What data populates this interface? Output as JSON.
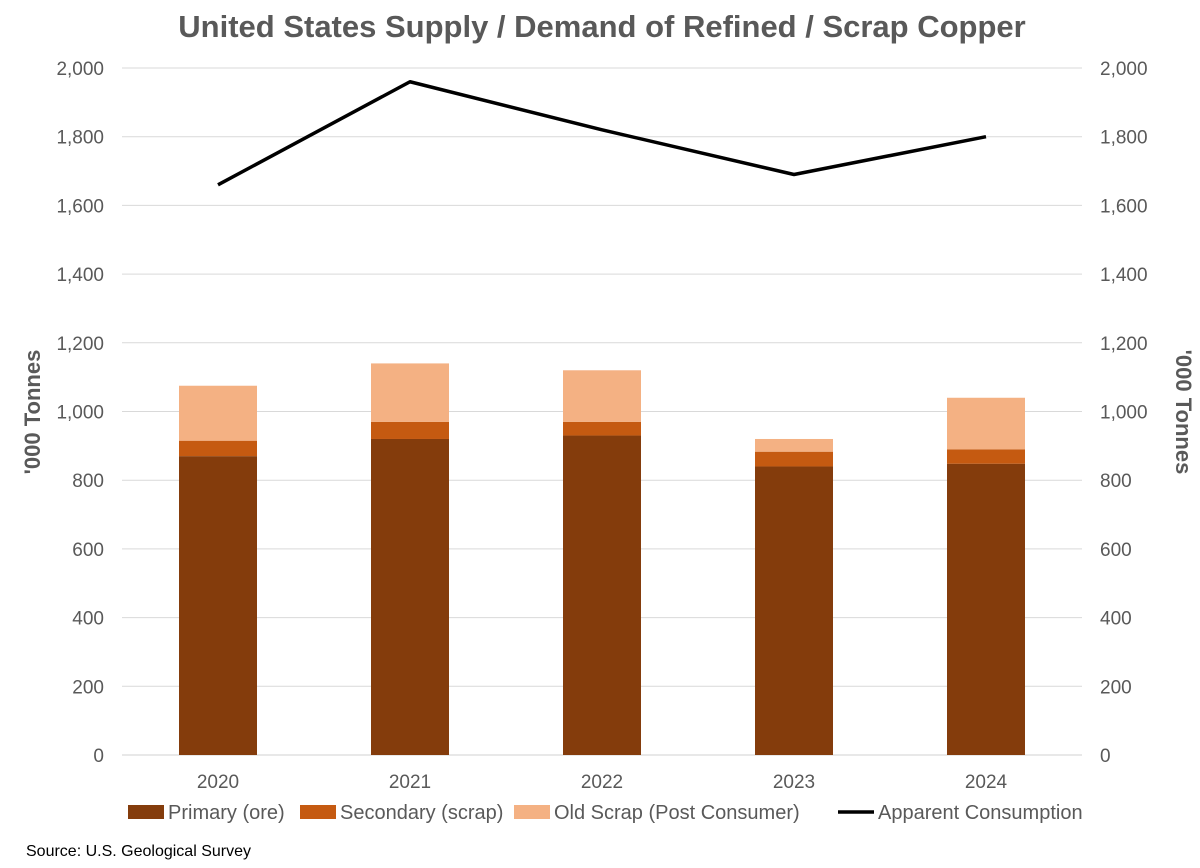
{
  "chart_data": {
    "type": "bar",
    "stacked": true,
    "title": "United States Supply / Demand of Refined / Scrap Copper",
    "categories": [
      "2020",
      "2021",
      "2022",
      "2023",
      "2024"
    ],
    "series": [
      {
        "name": "Primary (ore)",
        "kind": "bar",
        "color": "#843C0C",
        "values": [
          870,
          920,
          930,
          840,
          848
        ]
      },
      {
        "name": "Secondary (scrap)",
        "kind": "bar",
        "color": "#C55A11",
        "values": [
          45,
          50,
          40,
          43,
          42
        ]
      },
      {
        "name": "Old Scrap (Post Consumer)",
        "kind": "bar",
        "color": "#F4B183",
        "values": [
          160,
          170,
          150,
          37,
          150
        ]
      },
      {
        "name": "Apparent Consumption",
        "kind": "line",
        "color": "#000000",
        "values": [
          1660,
          1960,
          1820,
          1690,
          1800
        ]
      }
    ],
    "ylim": [
      0,
      2000
    ],
    "yticks": [
      0,
      200,
      400,
      600,
      800,
      1000,
      1200,
      1400,
      1600,
      1800,
      2000
    ],
    "ytick_labels": [
      "0",
      "200",
      "400",
      "600",
      "800",
      "1,000",
      "1,200",
      "1,400",
      "1,600",
      "1,800",
      "2,000"
    ],
    "ylabel_left": "'000 Tonnes",
    "ylabel_right": "'000 Tonnes",
    "xlabel": "",
    "grid": true,
    "legend_position": "bottom"
  },
  "footer": {
    "source": "Source: U.S. Geological Survey"
  }
}
